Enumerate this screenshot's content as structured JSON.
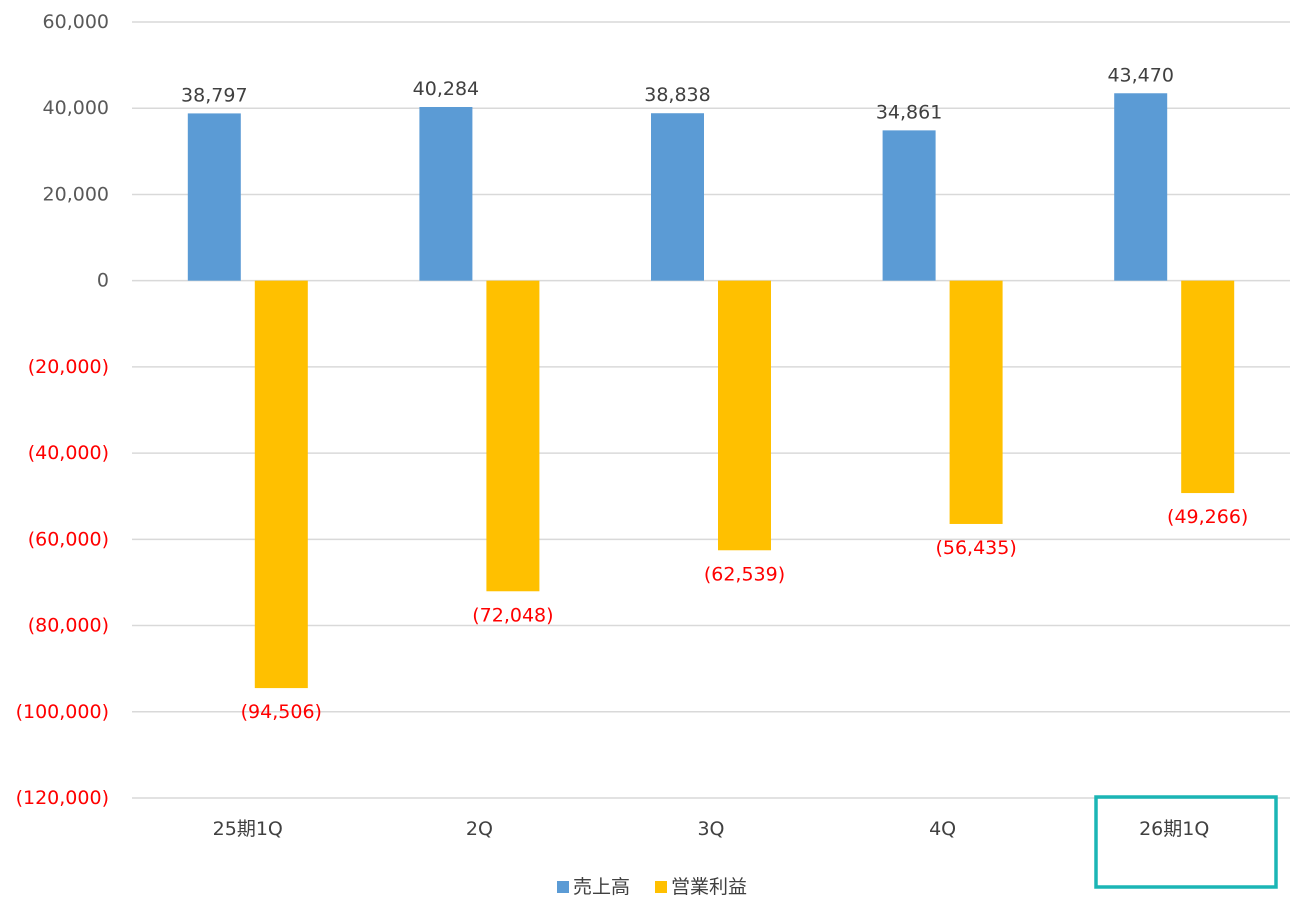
{
  "chart_data": {
    "type": "bar",
    "title": "",
    "xlabel": "",
    "ylabel": "",
    "categories": [
      "25期1Q",
      "2Q",
      "3Q",
      "4Q",
      "26期1Q"
    ],
    "series": [
      {
        "name": "売上高",
        "color": "#5B9BD5",
        "values": [
          38797,
          40284,
          38838,
          34861,
          43470
        ],
        "labels": [
          "38,797",
          "40,284",
          "38,838",
          "34,861",
          "43,470"
        ],
        "label_color": "#404040"
      },
      {
        "name": "営業利益",
        "color": "#FFC000",
        "values": [
          -94506,
          -72048,
          -62539,
          -56435,
          -49266
        ],
        "labels": [
          "(94,506)",
          "(72,048)",
          "(62,539)",
          "(56,435)",
          "(49,266)"
        ],
        "label_color": "#FF0000"
      }
    ],
    "ylim": [
      -120000,
      60000
    ],
    "y_ticks": [
      {
        "value": 60000,
        "label": "60,000"
      },
      {
        "value": 40000,
        "label": "40,000"
      },
      {
        "value": 20000,
        "label": "20,000"
      },
      {
        "value": 0,
        "label": "0"
      },
      {
        "value": -20000,
        "label": "(20,000)"
      },
      {
        "value": -40000,
        "label": "(40,000)"
      },
      {
        "value": -60000,
        "label": "(60,000)"
      },
      {
        "value": -80000,
        "label": "(80,000)"
      },
      {
        "value": -100000,
        "label": "(100,000)"
      },
      {
        "value": -120000,
        "label": "(120,000)"
      }
    ],
    "positive_tick_color": "#595959",
    "negative_tick_color": "#FF0000",
    "grid": true,
    "gridline_color": "#D9D9D9",
    "legend": "bottom-center",
    "highlight": {
      "category": "26期1Q",
      "color": "#1BB5B5"
    }
  }
}
